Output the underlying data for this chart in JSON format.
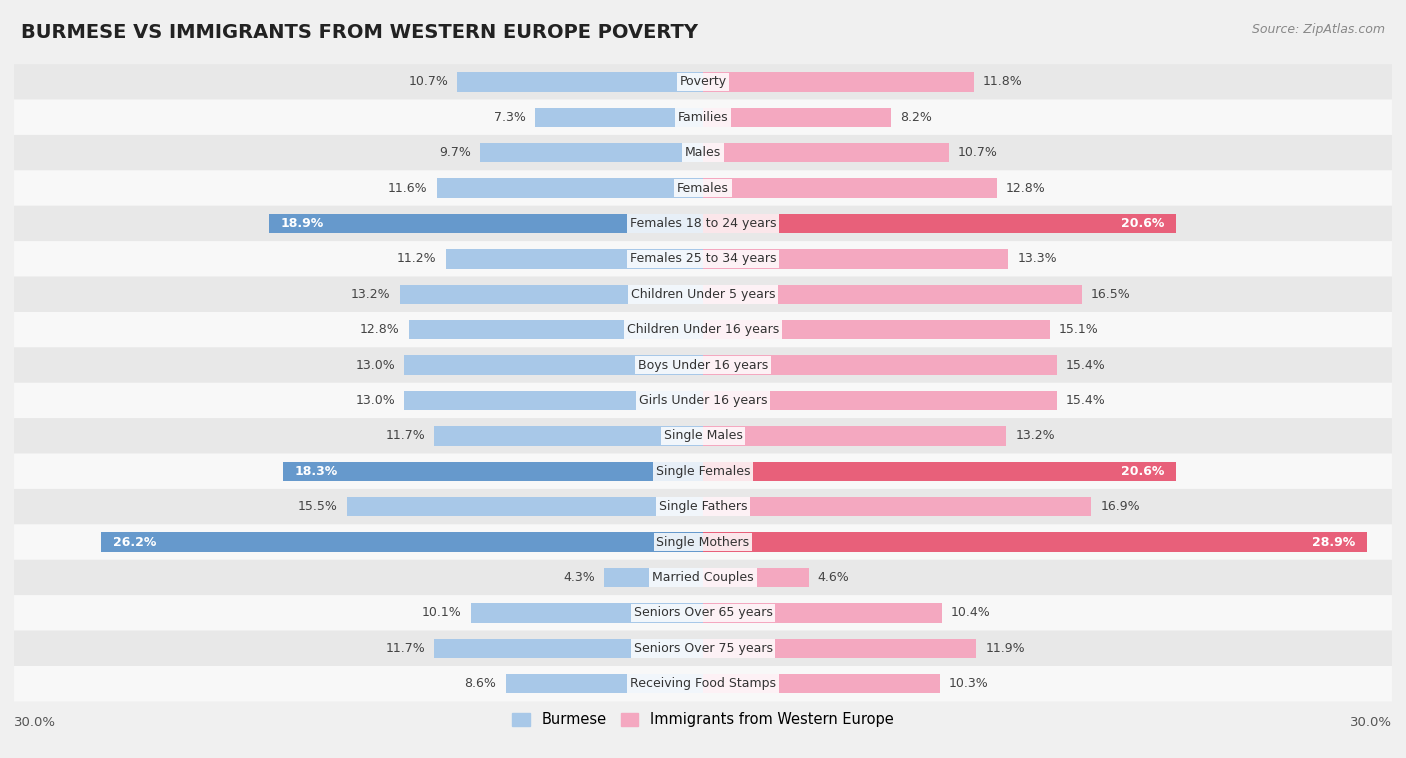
{
  "title": "BURMESE VS IMMIGRANTS FROM WESTERN EUROPE POVERTY",
  "source": "Source: ZipAtlas.com",
  "categories": [
    "Poverty",
    "Families",
    "Males",
    "Females",
    "Females 18 to 24 years",
    "Females 25 to 34 years",
    "Children Under 5 years",
    "Children Under 16 years",
    "Boys Under 16 years",
    "Girls Under 16 years",
    "Single Males",
    "Single Females",
    "Single Fathers",
    "Single Mothers",
    "Married Couples",
    "Seniors Over 65 years",
    "Seniors Over 75 years",
    "Receiving Food Stamps"
  ],
  "burmese": [
    10.7,
    7.3,
    9.7,
    11.6,
    18.9,
    11.2,
    13.2,
    12.8,
    13.0,
    13.0,
    11.7,
    18.3,
    15.5,
    26.2,
    4.3,
    10.1,
    11.7,
    8.6
  ],
  "western_europe": [
    11.8,
    8.2,
    10.7,
    12.8,
    20.6,
    13.3,
    16.5,
    15.1,
    15.4,
    15.4,
    13.2,
    20.6,
    16.9,
    28.9,
    4.6,
    10.4,
    11.9,
    10.3
  ],
  "burmese_color_normal": "#a8c8e8",
  "burmese_color_highlight": "#6699cc",
  "western_europe_color_normal": "#f4a8c0",
  "western_europe_color_highlight": "#e8607a",
  "highlight_rows": [
    4,
    11,
    13
  ],
  "background_color": "#f0f0f0",
  "row_even_color": "#e8e8e8",
  "row_odd_color": "#f8f8f8",
  "xmax": 30.0,
  "bar_height": 0.55,
  "legend_label_left": "Burmese",
  "legend_label_right": "Immigrants from Western Europe",
  "label_fontsize": 9,
  "category_fontsize": 9,
  "title_fontsize": 14
}
